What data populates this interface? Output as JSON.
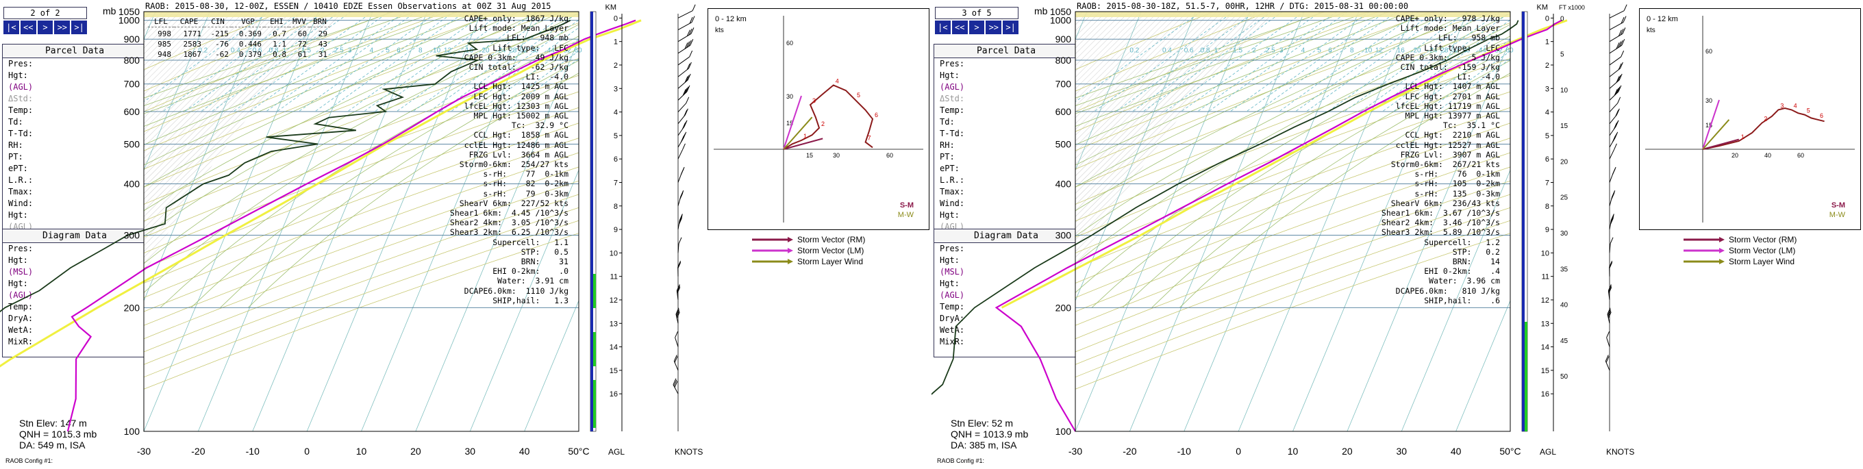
{
  "colors": {
    "isotherm": "#7fbfbf",
    "dry_adiabat": "#c8c872",
    "moist_adiabat": "#9fbf6f",
    "mixing_ratio": "#5fb5c5",
    "temperature": "#cc00cc",
    "parcel": "#f0f040",
    "dewpoint": "#1a3a1a",
    "hodograph": "#8b1a1a",
    "storm_rm": "#8b1a4a",
    "storm_lm": "#cc33cc",
    "storm_layer": "#8b8b1a",
    "nav_button": "#1a2a9a",
    "frame_blue": "#1a2ab0",
    "frame_green": "#22cc22"
  },
  "panels": [
    {
      "nav": {
        "title": "2 of 2",
        "buttons": [
          "|<",
          "<<",
          ">",
          ">>",
          ">|"
        ]
      },
      "mb_label": "mb",
      "header": "RAOB:  2015-08-30, 12-00Z, ESSEN / 10410 EDZE Essen Observations at 00Z 31 Aug 2015",
      "parcel_table": {
        "headers": [
          "LFL",
          "CAPE",
          "CIN",
          "VGP",
          "EHI",
          "MVV",
          "BRN"
        ],
        "rows": [
          [
            "998",
            "1771",
            "-215",
            "0.369",
            "0.7",
            "60",
            "29"
          ],
          [
            "985",
            "2583",
            "-76",
            "0.446",
            "1.1",
            "72",
            "43"
          ],
          [
            "948",
            "1867",
            "-62",
            "0.379",
            "0.8",
            "61",
            "31"
          ]
        ]
      },
      "parcel_box": {
        "title": "Parcel Data",
        "rows": [
          "Pres:",
          "Hgt:",
          "(AGL)",
          "ΔStd:",
          "Temp:",
          "Td:",
          "T-Td:",
          "RH:",
          "PT:",
          "ePT:",
          "",
          "L.R.:",
          "Tmax:",
          "",
          "Wind:",
          "Hgt:",
          "(AGL)"
        ]
      },
      "diagram_box": {
        "title": "Diagram Data",
        "rows": [
          "Pres:",
          "Hgt:",
          "(MSL)",
          "Hgt:",
          "(AGL)",
          "Temp:",
          "",
          "DryA:",
          "WetA:",
          "MixR:"
        ]
      },
      "stn_elev": "Stn Elev: 147 m",
      "qnh": "QNH = 1015.3 mb",
      "da": "DA: 549 m, ISA",
      "raob_config": "RAOB Config #1:",
      "stats": [
        "CAPE+ only:  1867 J/kg",
        "Lift mode: Mean Layer",
        "LFL:   948 mb",
        "Lift type:   LFC",
        "CAPE 0-3km:    49 J/kg",
        "CIN total:   -62 J/kg",
        "LI:  -4.0",
        "LCL Hgt:  1425 m AGL",
        "LFC Hgt:  2009 m AGL",
        "lfcEL Hgt: 12303 m AGL",
        "MPL Hgt: 15002 m AGL",
        "Tc:  32.9 °C",
        "CCL Hgt:  1858 m AGL",
        "cclEL Hgt: 12486 m AGL",
        "FRZG Lvl:  3664 m AGL",
        "Storm0-6km:  254/27 kts",
        "s-rH:    77  0-1km",
        "s-rH:    82  0-2km",
        "s-rH:    79  0-3km",
        "ShearV 6km:  227/52 kts",
        "Shear1 6km:  4.45 /10^3/s",
        "Shear2 4km:  3.05 /10^3/s",
        "Shear3 2km:  6.25 /10^3/s",
        "Supercell:   1.1",
        "STP:   0.5",
        "BRN:    31",
        "EHI 0-2km:    .0",
        "Water:  3.91 cm",
        "DCAPE6.0km:  1110 J/kg",
        "SHIP,hail:   1.3"
      ],
      "hodograph": {
        "title": "0 - 12 km",
        "units": "kts",
        "y_ticks": [
          "60",
          "30",
          "15"
        ],
        "x_ticks": [
          "15",
          "30",
          "60"
        ],
        "labels": [
          "S-M",
          "M-W"
        ]
      },
      "legend": [
        "Storm Vector (RM)",
        "Storm Vector (LM)",
        "Storm Layer Wind"
      ],
      "km_label": "KM",
      "ft_label": "",
      "km_ticks": [
        "0",
        "1",
        "2",
        "3",
        "4",
        "5",
        "6",
        "7",
        "8",
        "9",
        "10",
        "11",
        "12",
        "13",
        "14",
        "15",
        "16"
      ],
      "ft_ticks": [],
      "agl_label": "AGL",
      "knots_label": "KNOTS",
      "chart_data": {
        "type": "skew-t",
        "x_label": "°C",
        "x_ticks": [
          "-30",
          "-20",
          "-10",
          "0",
          "10",
          "20",
          "30",
          "40",
          "50°C"
        ],
        "y_ticks": [
          "100",
          "200",
          "300",
          "400",
          "500",
          "600",
          "700",
          "800",
          "900",
          "1000",
          "1050"
        ],
        "mixing_ratio_labels": [
          "0.2",
          "0.4",
          "0.6",
          "0.8",
          "1",
          "1.5",
          "2",
          "2.5",
          "3",
          "4",
          "5",
          "6",
          "8",
          "10",
          "12",
          "16",
          "20",
          "24",
          "28",
          "32",
          "36",
          "44",
          "52",
          "60"
        ],
        "temperature_profile": [
          [
            1000,
            29
          ],
          [
            980,
            27.5
          ],
          [
            950,
            25
          ],
          [
            925,
            23
          ],
          [
            900,
            21
          ],
          [
            850,
            18
          ],
          [
            800,
            14
          ],
          [
            750,
            10.5
          ],
          [
            700,
            7
          ],
          [
            650,
            3
          ],
          [
            600,
            -0.5
          ],
          [
            550,
            -4
          ],
          [
            500,
            -8
          ],
          [
            450,
            -13
          ],
          [
            400,
            -19
          ],
          [
            350,
            -25.5
          ],
          [
            300,
            -33
          ],
          [
            250,
            -42
          ],
          [
            200,
            -50
          ],
          [
            190,
            -52
          ],
          [
            180,
            -50
          ],
          [
            170,
            -47
          ],
          [
            150,
            -48
          ],
          [
            120,
            -45
          ],
          [
            100,
            -44
          ]
        ],
        "dewpoint_profile": [
          [
            1000,
            17
          ],
          [
            980,
            16
          ],
          [
            950,
            14
          ],
          [
            925,
            12
          ],
          [
            900,
            10
          ],
          [
            880,
            0
          ],
          [
            850,
            2
          ],
          [
            820,
            -5
          ],
          [
            800,
            3
          ],
          [
            750,
            -1
          ],
          [
            700,
            -3
          ],
          [
            680,
            -12
          ],
          [
            650,
            -8
          ],
          [
            620,
            -12
          ],
          [
            600,
            -10
          ],
          [
            580,
            -20
          ],
          [
            560,
            -22
          ],
          [
            540,
            -14
          ],
          [
            520,
            -30
          ],
          [
            500,
            -20
          ],
          [
            480,
            -28
          ],
          [
            450,
            -32
          ],
          [
            420,
            -34
          ],
          [
            400,
            -38
          ],
          [
            350,
            -43
          ],
          [
            320,
            -42
          ],
          [
            300,
            -48
          ],
          [
            280,
            -51
          ],
          [
            250,
            -56
          ],
          [
            220,
            -60
          ],
          [
            200,
            -65
          ],
          [
            180,
            -68
          ],
          [
            150,
            -74
          ],
          [
            120,
            -78
          ],
          [
            100,
            -80
          ]
        ],
        "parcel_profile": [
          [
            1000,
            30
          ],
          [
            950,
            26.5
          ],
          [
            900,
            22
          ],
          [
            850,
            18.5
          ],
          [
            800,
            15
          ],
          [
            750,
            12
          ],
          [
            700,
            8.5
          ],
          [
            650,
            5
          ],
          [
            600,
            1
          ],
          [
            550,
            -3
          ],
          [
            500,
            -7.5
          ],
          [
            450,
            -12
          ],
          [
            400,
            -17
          ],
          [
            350,
            -23
          ],
          [
            300,
            -30
          ],
          [
            250,
            -38
          ],
          [
            200,
            -48
          ],
          [
            150,
            -60
          ],
          [
            120,
            -68
          ]
        ],
        "wind_barbs_km": [
          0,
          0.5,
          1,
          1.5,
          2,
          2.5,
          3,
          3.5,
          4,
          4.5,
          5,
          5.5,
          6,
          7,
          8,
          9,
          10,
          11,
          12,
          13,
          14,
          15,
          16
        ],
        "hodograph_points": [
          [
            0,
            0
          ],
          [
            5,
            3
          ],
          [
            10,
            5
          ],
          [
            16,
            8
          ],
          [
            20,
            12
          ],
          [
            18,
            18
          ],
          [
            15,
            25
          ],
          [
            22,
            31
          ],
          [
            28,
            36
          ],
          [
            35,
            33
          ],
          [
            40,
            28
          ],
          [
            46,
            22
          ],
          [
            50,
            17
          ],
          [
            48,
            10
          ],
          [
            46,
            4
          ],
          [
            50,
            1
          ]
        ]
      }
    },
    {
      "nav": {
        "title": "3 of 5",
        "buttons": [
          "|<",
          "<<",
          ">",
          ">>",
          ">|"
        ]
      },
      "mb_label": "mb",
      "header": "RAOB:  2015-08-30-18Z, 51.5-7, 00HR, 12HR / DTG: 2015-08-31 00:00:00",
      "parcel_table": null,
      "parcel_box": {
        "title": "Parcel Data",
        "rows": [
          "Pres:",
          "Hgt:",
          "(AGL)",
          "ΔStd:",
          "Temp:",
          "Td:",
          "T-Td:",
          "RH:",
          "PT:",
          "ePT:",
          "",
          "L.R.:",
          "Tmax:",
          "",
          "Wind:",
          "Hgt:",
          "(AGL)"
        ]
      },
      "diagram_box": {
        "title": "Diagram Data",
        "rows": [
          "Pres:",
          "Hgt:",
          "(MSL)",
          "Hgt:",
          "(AGL)",
          "Temp:",
          "",
          "DryA:",
          "WetA:",
          "MixR:"
        ]
      },
      "stn_elev": "Stn Elev: 52 m",
      "qnh": "QNH = 1013.9 mb",
      "da": "DA: 385 m, ISA",
      "raob_config": "RAOB Config #1:",
      "stats": [
        "CAPE+ only:   978 J/kg",
        "Lift mode: Mean Layer",
        "LFL:   958 mb",
        "Lift type:   LFC",
        "CAPE 0-3km:     5 J/kg",
        "CIN total:  -159 J/kg",
        "LI:  -4.0",
        "LCL Hgt:  1407 m AGL",
        "LFC Hgt:  2701 m AGL",
        "lfcEL Hgt: 11719 m AGL",
        "MPL Hgt: 13977 m AGL",
        "Tc:  35.1 °C",
        "CCL Hgt:  2210 m AGL",
        "cclEL Hgt: 12527 m AGL",
        "FRZG Lvl:  3907 m AGL",
        "Storm0-6km:  267/21 kts",
        "s-rH:    76  0-1km",
        "s-rH:   105  0-2km",
        "s-rH:   135  0-3km",
        "ShearV 6km:  236/43 kts",
        "Shear1 6km:  3.67 /10^3/s",
        "Shear2 4km:  3.46 /10^3/s",
        "Shear3 2km:  5.89 /10^3/s",
        "Supercell:   1.2",
        "STP:   0.2",
        "BRN:    14",
        "EHI 0-2km:    .4",
        "Water:  3.96 cm",
        "DCAPE6.0km:   810 J/kg",
        "SHIP,hail:    .6"
      ],
      "hodograph": {
        "title": "0 - 12 km",
        "units": "kts",
        "y_ticks": [
          "60",
          "30",
          "15"
        ],
        "x_ticks": [
          "20",
          "40",
          "60"
        ],
        "labels": [
          "S-M",
          "M-W"
        ]
      },
      "legend": [
        "Storm Vector (RM)",
        "Storm Vector (LM)",
        "Storm Layer Wind"
      ],
      "km_label": "KM",
      "ft_label": "FT x1000",
      "km_ticks": [
        "0",
        "1",
        "2",
        "3",
        "4",
        "5",
        "6",
        "7",
        "8",
        "9",
        "10",
        "11",
        "12",
        "13",
        "14",
        "15",
        "16"
      ],
      "ft_ticks": [
        "0",
        "5",
        "10",
        "15",
        "20",
        "25",
        "30",
        "35",
        "40",
        "45",
        "50"
      ],
      "agl_label": "AGL",
      "knots_label": "KNOTS",
      "chart_data": {
        "type": "skew-t",
        "x_label": "°C",
        "x_ticks": [
          "-30",
          "-20",
          "-10",
          "0",
          "10",
          "20",
          "30",
          "40",
          "50°C"
        ],
        "y_ticks": [
          "100",
          "200",
          "300",
          "400",
          "500",
          "600",
          "700",
          "800",
          "900",
          "1000",
          "1050"
        ],
        "mixing_ratio_labels": [
          "0.2",
          "0.4",
          "0.6",
          "0.8",
          "1",
          "1.5",
          "2",
          "2.5",
          "3",
          "4",
          "5",
          "6",
          "8",
          "10",
          "12",
          "16",
          "20",
          "24",
          "28",
          "32",
          "36",
          "44",
          "52",
          "60"
        ],
        "temperature_profile": [
          [
            1000,
            28
          ],
          [
            980,
            27
          ],
          [
            950,
            26
          ],
          [
            925,
            24
          ],
          [
            900,
            22
          ],
          [
            850,
            18.5
          ],
          [
            800,
            14.5
          ],
          [
            750,
            10.5
          ],
          [
            700,
            6.5
          ],
          [
            650,
            2.5
          ],
          [
            600,
            -1.5
          ],
          [
            550,
            -5.5
          ],
          [
            500,
            -10
          ],
          [
            450,
            -15
          ],
          [
            400,
            -21
          ],
          [
            350,
            -27.5
          ],
          [
            300,
            -35
          ],
          [
            250,
            -44
          ],
          [
            200,
            -54
          ],
          [
            180,
            -48
          ],
          [
            150,
            -42
          ],
          [
            120,
            -36
          ],
          [
            100,
            -30
          ]
        ],
        "dewpoint_profile": [
          [
            1000,
            20
          ],
          [
            980,
            20
          ],
          [
            950,
            19
          ],
          [
            925,
            18
          ],
          [
            900,
            16
          ],
          [
            850,
            13
          ],
          [
            800,
            10
          ],
          [
            750,
            6
          ],
          [
            700,
            1
          ],
          [
            650,
            -4
          ],
          [
            600,
            -8
          ],
          [
            550,
            -13
          ],
          [
            500,
            -18
          ],
          [
            450,
            -24
          ],
          [
            400,
            -30
          ],
          [
            350,
            -36
          ],
          [
            300,
            -42
          ],
          [
            250,
            -50
          ],
          [
            200,
            -58
          ],
          [
            180,
            -60
          ],
          [
            150,
            -58
          ],
          [
            130,
            -58
          ],
          [
            110,
            -62
          ],
          [
            100,
            -64
          ]
        ],
        "parcel_profile": [
          [
            1000,
            29
          ],
          [
            950,
            25
          ],
          [
            900,
            21.5
          ],
          [
            850,
            18
          ],
          [
            800,
            14.5
          ],
          [
            750,
            11
          ],
          [
            700,
            7.5
          ],
          [
            650,
            3.5
          ],
          [
            600,
            -0.5
          ],
          [
            550,
            -4.5
          ],
          [
            500,
            -9
          ],
          [
            450,
            -14
          ],
          [
            400,
            -19.5
          ],
          [
            350,
            -26
          ],
          [
            300,
            -33
          ],
          [
            250,
            -42
          ],
          [
            200,
            -53
          ]
        ],
        "wind_barbs_km": [
          0,
          0.5,
          1,
          1.5,
          2,
          2.5,
          3,
          3.5,
          4,
          4.5,
          5,
          5.5,
          6,
          7,
          8,
          9,
          10,
          11,
          12,
          13,
          14,
          15
        ],
        "hodograph_points": [
          [
            0,
            0
          ],
          [
            10,
            2
          ],
          [
            22,
            5
          ],
          [
            30,
            10
          ],
          [
            36,
            16
          ],
          [
            42,
            20
          ],
          [
            46,
            24
          ],
          [
            50,
            25
          ],
          [
            54,
            24
          ],
          [
            58,
            22
          ],
          [
            62,
            21
          ],
          [
            66,
            19
          ],
          [
            70,
            18
          ],
          [
            74,
            17
          ]
        ]
      }
    }
  ]
}
